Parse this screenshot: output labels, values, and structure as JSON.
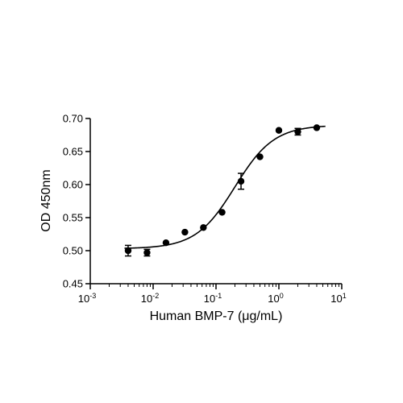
{
  "chart_data": {
    "type": "scatter",
    "xscale": "log",
    "xlabel": "Human BMP-7 (μg/mL)",
    "ylabel": "OD 450nm",
    "xlim": [
      0.001,
      10
    ],
    "ylim": [
      0.45,
      0.7
    ],
    "x_ticks": [
      {
        "base": "10",
        "exp": "-3",
        "value": 0.001
      },
      {
        "base": "10",
        "exp": "-2",
        "value": 0.01
      },
      {
        "base": "10",
        "exp": "-1",
        "value": 0.1
      },
      {
        "base": "10",
        "exp": "0",
        "value": 1
      },
      {
        "base": "10",
        "exp": "1",
        "value": 10
      }
    ],
    "y_ticks": [
      "0.45",
      "0.50",
      "0.55",
      "0.60",
      "0.65",
      "0.70"
    ],
    "grid": false,
    "points": [
      {
        "x": 0.004,
        "y": 0.5,
        "err": 0.008
      },
      {
        "x": 0.008,
        "y": 0.497,
        "err": 0.005
      },
      {
        "x": 0.016,
        "y": 0.512,
        "err": 0
      },
      {
        "x": 0.032,
        "y": 0.528,
        "err": 0
      },
      {
        "x": 0.063,
        "y": 0.535,
        "err": 0
      },
      {
        "x": 0.125,
        "y": 0.558,
        "err": 0
      },
      {
        "x": 0.25,
        "y": 0.605,
        "err": 0.012
      },
      {
        "x": 0.5,
        "y": 0.642,
        "err": 0
      },
      {
        "x": 1.0,
        "y": 0.682,
        "err": 0
      },
      {
        "x": 2.0,
        "y": 0.68,
        "err": 0.005
      },
      {
        "x": 4.0,
        "y": 0.686,
        "err": 0
      }
    ],
    "fit": {
      "type": "4PL",
      "bottom": 0.503,
      "top": 0.69,
      "ec50": 0.2,
      "hill": 1.4
    }
  }
}
